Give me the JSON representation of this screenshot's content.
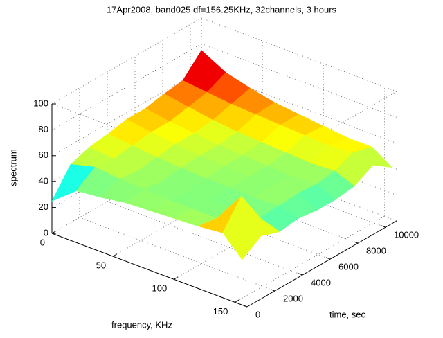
{
  "chart_data": {
    "type": "surface",
    "title": "17Apr2008, band025  df=156.25KHz, 32channels, 3 hours",
    "xlabel": "frequency, KHz",
    "ylabel": "time, sec",
    "zlabel": "spectrum",
    "x": [
      0,
      20,
      40,
      60,
      80,
      100,
      120,
      140,
      156
    ],
    "y": [
      0,
      1350,
      2700,
      4050,
      5400,
      6750,
      8100,
      9450,
      10800
    ],
    "z": [
      [
        25,
        45,
        50,
        52,
        55,
        55,
        58,
        60,
        75
      ],
      [
        40,
        50,
        48,
        50,
        52,
        52,
        55,
        58,
        65
      ],
      [
        42,
        48,
        46,
        48,
        50,
        50,
        52,
        56,
        60
      ],
      [
        45,
        47,
        45,
        47,
        48,
        48,
        50,
        55,
        56
      ],
      [
        46,
        46,
        44,
        46,
        47,
        47,
        49,
        54,
        54
      ],
      [
        47,
        46,
        45,
        46,
        46,
        46,
        48,
        53,
        52
      ],
      [
        48,
        46,
        44,
        45,
        46,
        45,
        47,
        52,
        50
      ],
      [
        50,
        70,
        45,
        46,
        47,
        46,
        48,
        54,
        50
      ],
      [
        35,
        45,
        40,
        42,
        40,
        40,
        42,
        50,
        40
      ]
    ],
    "xlim": [
      0,
      160
    ],
    "ylim": [
      0,
      10800
    ],
    "zlim": [
      0,
      100
    ],
    "xticks": [
      0,
      50,
      100,
      150
    ],
    "yticks": [
      0,
      2000,
      4000,
      6000,
      8000,
      10000
    ],
    "zticks": [
      0,
      20,
      40,
      60,
      80,
      100
    ],
    "clim": [
      20,
      70
    ],
    "colormap": "jet",
    "grid": true
  }
}
